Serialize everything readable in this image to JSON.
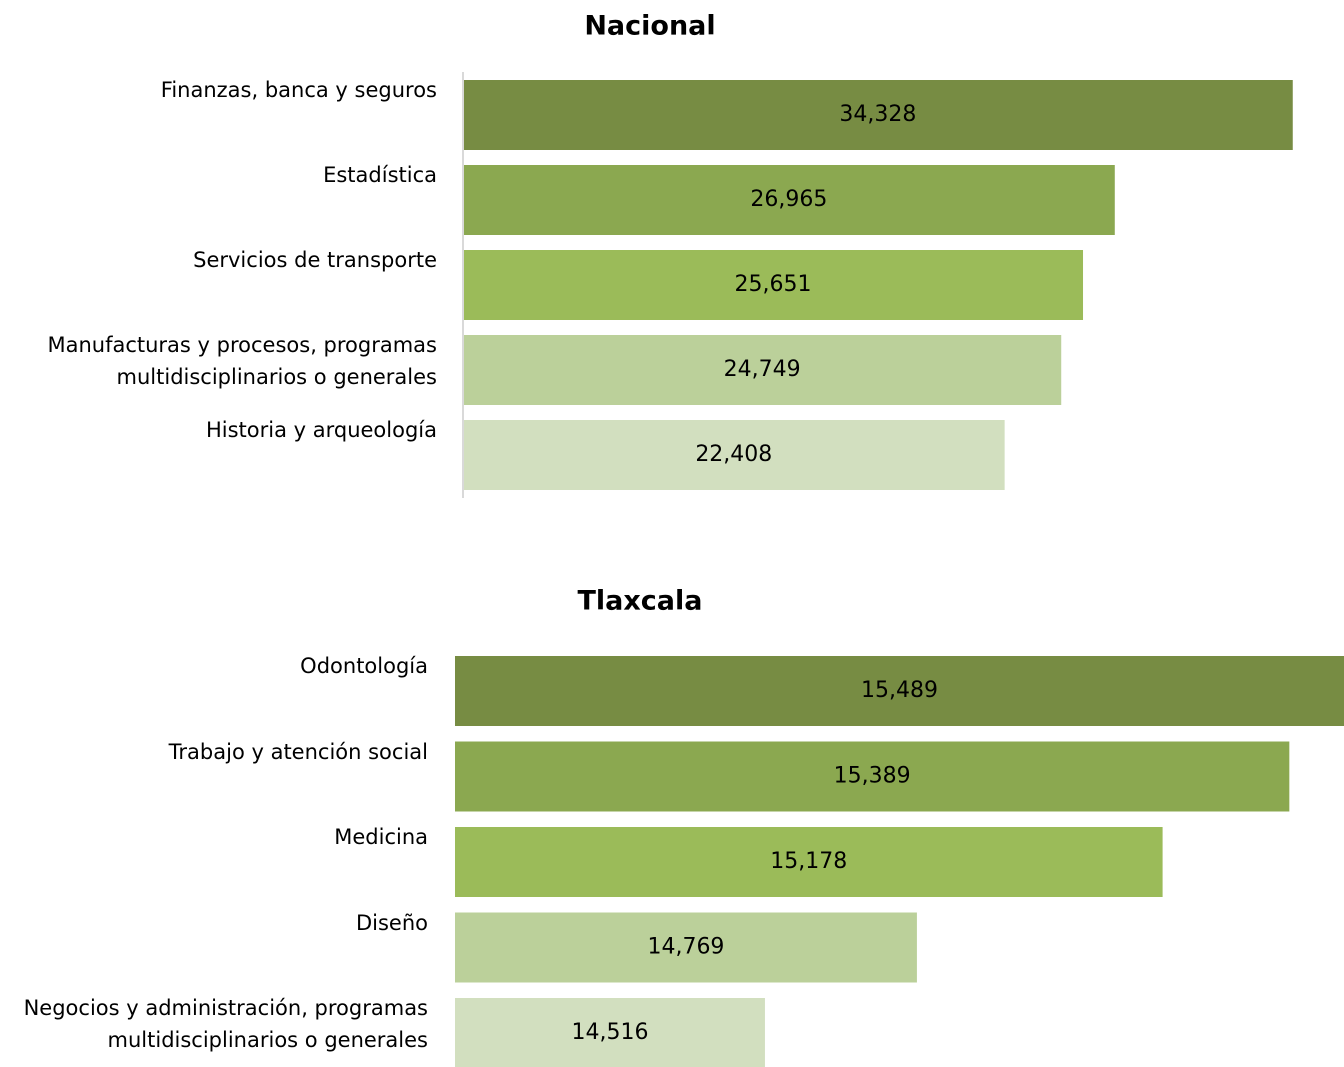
{
  "chart_data": [
    {
      "type": "bar",
      "orientation": "horizontal",
      "title": "Nacional",
      "categories": [
        "Finanzas, banca y seguros",
        "Estadística",
        "Servicios de transporte",
        "Manufacturas y procesos, programas\nmultidisciplinarios o generales",
        "Historia y arqueología"
      ],
      "values": [
        34328,
        26965,
        25651,
        24749,
        22408
      ],
      "value_labels": [
        "34,328",
        "26,965",
        "25,651",
        "24,749",
        "22,408"
      ],
      "colors": [
        "#778c43",
        "#8ba850",
        "#9bbb59",
        "#bbd09a",
        "#d2dfbf"
      ],
      "xlim": [
        0,
        35000
      ]
    },
    {
      "type": "bar",
      "orientation": "horizontal",
      "title": "Tlaxcala",
      "categories": [
        "Odontología",
        "Trabajo y atención social",
        "Medicina",
        "Diseño",
        "Negocios y administración, programas\nmultidisciplinarios o generales"
      ],
      "values": [
        15489,
        15389,
        15178,
        14769,
        14516
      ],
      "value_labels": [
        "15,489",
        "15,389",
        "15,178",
        "14,769",
        "14,516"
      ],
      "colors": [
        "#778c43",
        "#8ba850",
        "#9bbb59",
        "#bbd09a",
        "#d2dfbf"
      ],
      "xlim": [
        14000,
        15480
      ]
    }
  ]
}
